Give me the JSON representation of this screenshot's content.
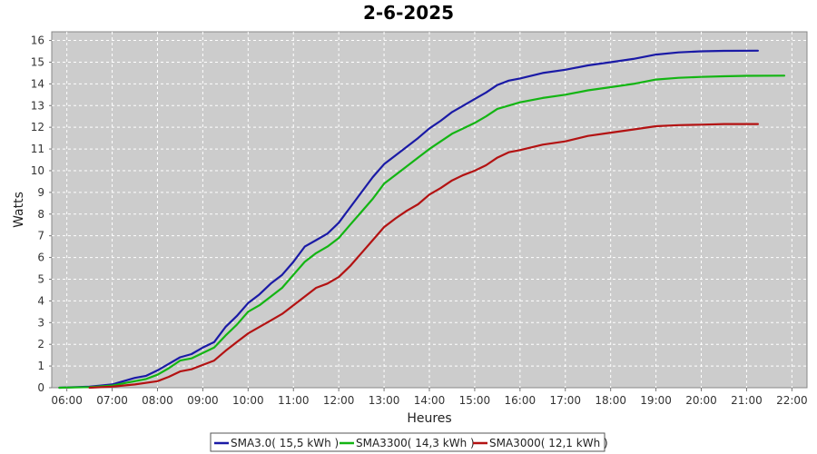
{
  "chart_data": {
    "type": "line",
    "title": "2-6-2025",
    "xlabel": "Heures",
    "ylabel": "Watts",
    "xlim": [
      "05:40",
      "22:20"
    ],
    "ylim": [
      0,
      16.4
    ],
    "x_ticks": [
      "06:00",
      "07:00",
      "08:00",
      "09:00",
      "10:00",
      "11:00",
      "12:00",
      "13:00",
      "14:00",
      "15:00",
      "16:00",
      "17:00",
      "18:00",
      "19:00",
      "20:00",
      "21:00",
      "22:00"
    ],
    "y_ticks": [
      0,
      1,
      2,
      3,
      4,
      5,
      6,
      7,
      8,
      9,
      10,
      11,
      12,
      13,
      14,
      15,
      16
    ],
    "grid": true,
    "legend_position": "bottom",
    "plot_background": "#cccccc",
    "series": [
      {
        "name": "SMA3.0( 15,5 kWh )",
        "color": "#1a1aa6",
        "points": [
          [
            "05:50",
            0
          ],
          [
            "06:30",
            0.05
          ],
          [
            "07:00",
            0.15
          ],
          [
            "07:15",
            0.3
          ],
          [
            "07:30",
            0.45
          ],
          [
            "07:45",
            0.55
          ],
          [
            "08:00",
            0.8
          ],
          [
            "08:15",
            1.1
          ],
          [
            "08:30",
            1.4
          ],
          [
            "08:45",
            1.55
          ],
          [
            "09:00",
            1.85
          ],
          [
            "09:15",
            2.1
          ],
          [
            "09:30",
            2.8
          ],
          [
            "09:45",
            3.3
          ],
          [
            "10:00",
            3.9
          ],
          [
            "10:15",
            4.3
          ],
          [
            "10:30",
            4.8
          ],
          [
            "10:45",
            5.2
          ],
          [
            "11:00",
            5.8
          ],
          [
            "11:15",
            6.5
          ],
          [
            "11:30",
            6.8
          ],
          [
            "11:45",
            7.1
          ],
          [
            "12:00",
            7.6
          ],
          [
            "12:15",
            8.3
          ],
          [
            "12:30",
            9.0
          ],
          [
            "12:45",
            9.7
          ],
          [
            "13:00",
            10.3
          ],
          [
            "13:15",
            10.7
          ],
          [
            "13:30",
            11.1
          ],
          [
            "13:45",
            11.5
          ],
          [
            "14:00",
            11.95
          ],
          [
            "14:15",
            12.3
          ],
          [
            "14:30",
            12.7
          ],
          [
            "14:45",
            13.0
          ],
          [
            "15:00",
            13.3
          ],
          [
            "15:15",
            13.6
          ],
          [
            "15:30",
            13.95
          ],
          [
            "15:45",
            14.15
          ],
          [
            "16:00",
            14.25
          ],
          [
            "16:30",
            14.5
          ],
          [
            "17:00",
            14.65
          ],
          [
            "17:30",
            14.85
          ],
          [
            "18:00",
            15.0
          ],
          [
            "18:30",
            15.15
          ],
          [
            "19:00",
            15.35
          ],
          [
            "19:30",
            15.45
          ],
          [
            "20:00",
            15.5
          ],
          [
            "20:30",
            15.52
          ],
          [
            "21:15",
            15.53
          ]
        ]
      },
      {
        "name": "SMA3300( 14,3 kWh )",
        "color": "#13b513",
        "points": [
          [
            "05:50",
            0
          ],
          [
            "06:30",
            0.03
          ],
          [
            "07:00",
            0.1
          ],
          [
            "07:15",
            0.2
          ],
          [
            "07:30",
            0.3
          ],
          [
            "07:45",
            0.4
          ],
          [
            "08:00",
            0.6
          ],
          [
            "08:15",
            0.9
          ],
          [
            "08:30",
            1.25
          ],
          [
            "08:45",
            1.35
          ],
          [
            "09:00",
            1.6
          ],
          [
            "09:15",
            1.85
          ],
          [
            "09:30",
            2.4
          ],
          [
            "09:45",
            2.9
          ],
          [
            "10:00",
            3.5
          ],
          [
            "10:15",
            3.8
          ],
          [
            "10:30",
            4.2
          ],
          [
            "10:45",
            4.6
          ],
          [
            "11:00",
            5.2
          ],
          [
            "11:15",
            5.8
          ],
          [
            "11:30",
            6.2
          ],
          [
            "11:45",
            6.5
          ],
          [
            "12:00",
            6.9
          ],
          [
            "12:15",
            7.5
          ],
          [
            "12:30",
            8.1
          ],
          [
            "12:45",
            8.7
          ],
          [
            "13:00",
            9.4
          ],
          [
            "13:15",
            9.8
          ],
          [
            "13:30",
            10.2
          ],
          [
            "13:45",
            10.6
          ],
          [
            "14:00",
            11.0
          ],
          [
            "14:15",
            11.35
          ],
          [
            "14:30",
            11.7
          ],
          [
            "14:45",
            11.95
          ],
          [
            "15:00",
            12.2
          ],
          [
            "15:15",
            12.5
          ],
          [
            "15:30",
            12.85
          ],
          [
            "15:45",
            13.0
          ],
          [
            "16:00",
            13.15
          ],
          [
            "16:30",
            13.35
          ],
          [
            "17:00",
            13.5
          ],
          [
            "17:30",
            13.7
          ],
          [
            "18:00",
            13.85
          ],
          [
            "18:30",
            14.0
          ],
          [
            "19:00",
            14.2
          ],
          [
            "19:30",
            14.28
          ],
          [
            "20:00",
            14.32
          ],
          [
            "20:30",
            14.35
          ],
          [
            "21:00",
            14.37
          ],
          [
            "21:50",
            14.38
          ]
        ]
      },
      {
        "name": "SMA3000( 12,1 kWh )",
        "color": "#b31212",
        "points": [
          [
            "06:30",
            0
          ],
          [
            "07:00",
            0.05
          ],
          [
            "07:30",
            0.15
          ],
          [
            "08:00",
            0.3
          ],
          [
            "08:15",
            0.5
          ],
          [
            "08:30",
            0.75
          ],
          [
            "08:45",
            0.85
          ],
          [
            "09:00",
            1.05
          ],
          [
            "09:15",
            1.25
          ],
          [
            "09:30",
            1.7
          ],
          [
            "09:45",
            2.1
          ],
          [
            "10:00",
            2.5
          ],
          [
            "10:15",
            2.8
          ],
          [
            "10:30",
            3.1
          ],
          [
            "10:45",
            3.4
          ],
          [
            "11:00",
            3.8
          ],
          [
            "11:15",
            4.2
          ],
          [
            "11:30",
            4.6
          ],
          [
            "11:45",
            4.8
          ],
          [
            "12:00",
            5.1
          ],
          [
            "12:15",
            5.6
          ],
          [
            "12:30",
            6.2
          ],
          [
            "12:45",
            6.8
          ],
          [
            "13:00",
            7.4
          ],
          [
            "13:15",
            7.8
          ],
          [
            "13:30",
            8.15
          ],
          [
            "13:45",
            8.45
          ],
          [
            "14:00",
            8.9
          ],
          [
            "14:15",
            9.2
          ],
          [
            "14:30",
            9.55
          ],
          [
            "14:45",
            9.8
          ],
          [
            "15:00",
            10.0
          ],
          [
            "15:15",
            10.25
          ],
          [
            "15:30",
            10.6
          ],
          [
            "15:45",
            10.85
          ],
          [
            "16:00",
            10.95
          ],
          [
            "16:30",
            11.2
          ],
          [
            "17:00",
            11.35
          ],
          [
            "17:30",
            11.6
          ],
          [
            "18:00",
            11.75
          ],
          [
            "18:30",
            11.9
          ],
          [
            "19:00",
            12.05
          ],
          [
            "19:30",
            12.1
          ],
          [
            "20:00",
            12.12
          ],
          [
            "20:30",
            12.15
          ],
          [
            "21:15",
            12.15
          ]
        ]
      }
    ]
  }
}
